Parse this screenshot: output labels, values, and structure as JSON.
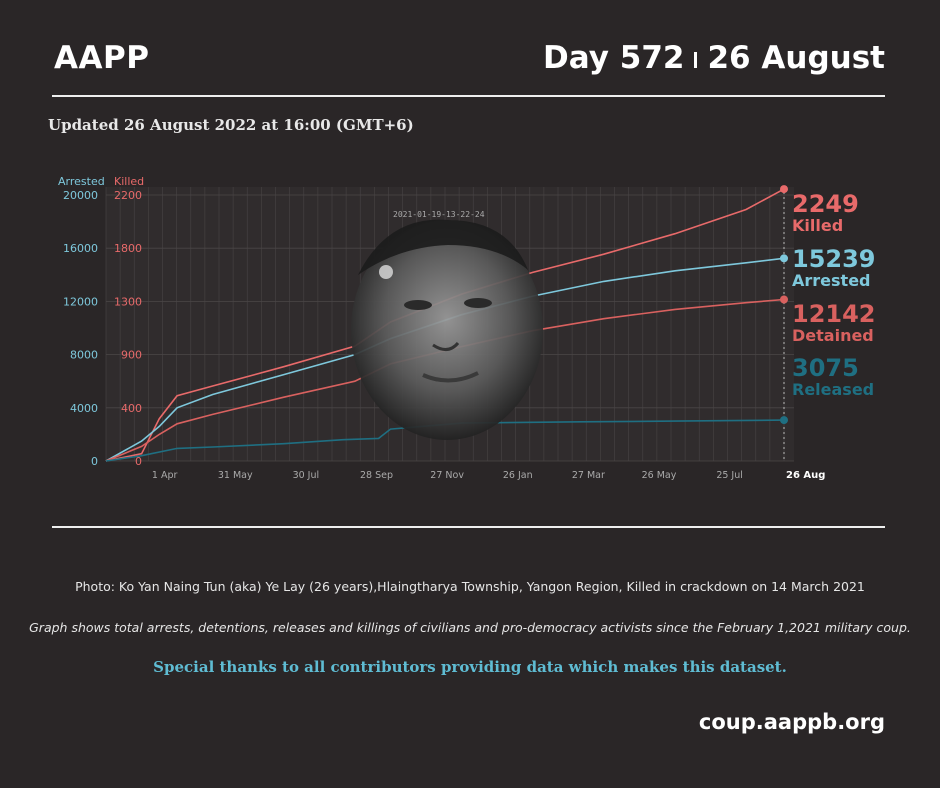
{
  "header": {
    "brand": "AAPP",
    "day": "Day 572",
    "date": "26 August"
  },
  "updated": "Updated 26 August 2022 at 16:00 (GMT+6)",
  "photo": {
    "stamp": "2021-01-19-13-22-24"
  },
  "colors": {
    "background": "#2a2627",
    "arrested": "#7ec8dc",
    "killed": "#e86a6a",
    "detained": "#d9615f",
    "released": "#1f6f82"
  },
  "chart_data": {
    "type": "line",
    "axis_labels": {
      "arrested": "Arrested",
      "killed": "Killed"
    },
    "x_ticks": [
      "1 Apr",
      "31 May",
      "30 Jul",
      "28 Sep",
      "27 Nov",
      "26 Jan",
      "27 Mar",
      "26 May",
      "25 Jul"
    ],
    "x_end_label": "26 Aug",
    "y_left_ticks": [
      "0",
      "4000",
      "8000",
      "12000",
      "16000",
      "20000"
    ],
    "y_right_ticks": [
      "0",
      "400",
      "900",
      "1300",
      "1800",
      "2200"
    ],
    "y_left_range": [
      0,
      20000
    ],
    "y_right_range": [
      0,
      2200
    ],
    "x_range_days": [
      0,
      572
    ],
    "series": [
      {
        "name": "Killed",
        "axis": "right",
        "final": "2249",
        "days": [
          0,
          30,
          45,
          60,
          90,
          150,
          210,
          240,
          300,
          360,
          420,
          480,
          540,
          572
        ],
        "values": [
          0,
          60,
          350,
          540,
          620,
          780,
          950,
          1150,
          1380,
          1560,
          1710,
          1880,
          2080,
          2249
        ]
      },
      {
        "name": "Arrested",
        "axis": "left",
        "final": "15239",
        "days": [
          0,
          30,
          45,
          60,
          90,
          150,
          210,
          240,
          300,
          360,
          420,
          480,
          540,
          572
        ],
        "values": [
          0,
          1500,
          2600,
          4000,
          5000,
          6500,
          8000,
          9200,
          11000,
          12400,
          13500,
          14300,
          14900,
          15239
        ]
      },
      {
        "name": "Detained",
        "axis": "left",
        "final": "12142",
        "days": [
          0,
          30,
          45,
          60,
          90,
          150,
          210,
          240,
          300,
          360,
          420,
          480,
          540,
          572
        ],
        "values": [
          0,
          1100,
          2000,
          2800,
          3500,
          4800,
          6000,
          7300,
          8600,
          9800,
          10700,
          11400,
          11900,
          12142
        ]
      },
      {
        "name": "Released",
        "axis": "left",
        "final": "3075",
        "days": [
          0,
          30,
          60,
          90,
          150,
          200,
          230,
          240,
          300,
          400,
          480,
          572
        ],
        "values": [
          0,
          400,
          950,
          1050,
          1300,
          1600,
          1700,
          2400,
          2850,
          2950,
          3000,
          3075
        ]
      }
    ],
    "end_labels": [
      {
        "value": "2249",
        "label": "Killed"
      },
      {
        "value": "15239",
        "label": "Arrested"
      },
      {
        "value": "12142",
        "label": "Detained"
      },
      {
        "value": "3075",
        "label": "Released"
      }
    ]
  },
  "footer": {
    "caption": "Photo: Ko Yan Naing Tun (aka) Ye Lay (26 years),Hlaingtharya Township, Yangon Region, Killed in crackdown on 14 March 2021",
    "graph_note": "Graph shows total arrests, detentions, releases and killings of civilians and pro-democracy activists since the February 1,2021 military coup.",
    "thanks": "Special thanks to all contributors providing data which makes this dataset.",
    "site": "coup.aappb.org"
  }
}
